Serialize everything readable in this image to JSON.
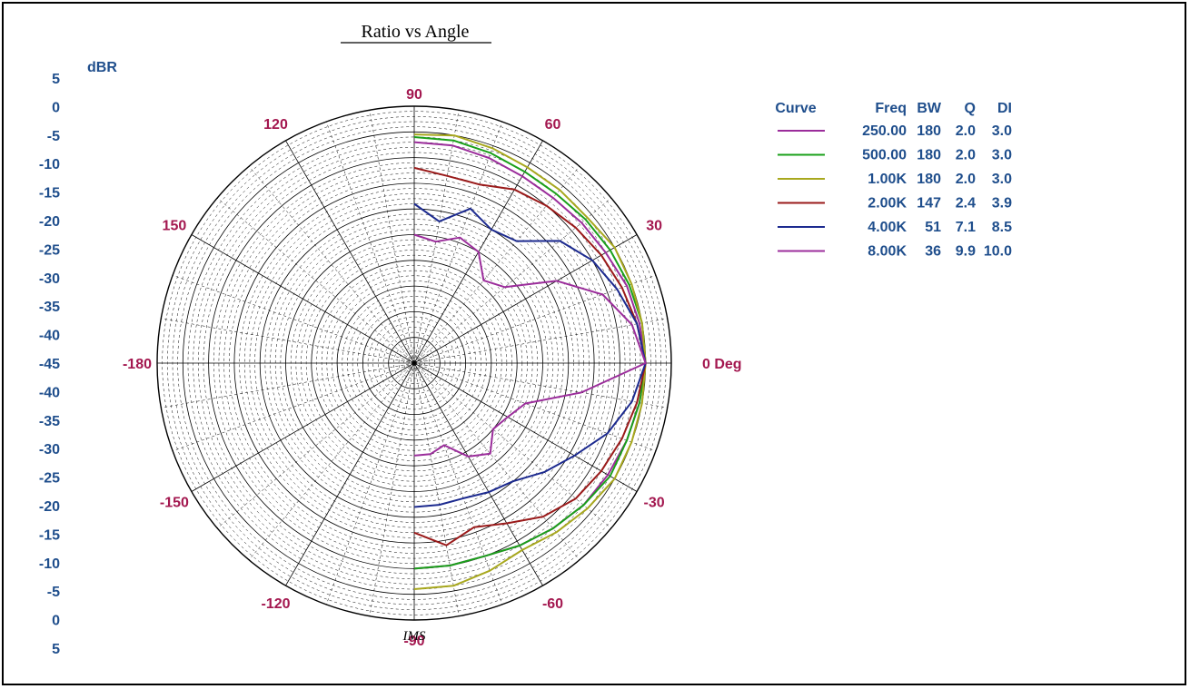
{
  "chart_data": {
    "type": "polar",
    "title": "Ratio vs Angle",
    "radial_unit": "dBR",
    "radial_range": [
      -45,
      5
    ],
    "radial_ticks_upper": [
      "5",
      "0",
      "-5",
      "-10",
      "-15",
      "-20",
      "-25",
      "-30",
      "-35",
      "-40",
      "-45"
    ],
    "radial_ticks_lower": [
      "-40",
      "-35",
      "-30",
      "-25",
      "-20",
      "-15",
      "-10",
      "-5",
      "0",
      "5"
    ],
    "angle_labels": [
      {
        "deg": 0,
        "text": "0 Deg"
      },
      {
        "deg": 30,
        "text": "30"
      },
      {
        "deg": 60,
        "text": "60"
      },
      {
        "deg": 90,
        "text": "90"
      },
      {
        "deg": 120,
        "text": "120"
      },
      {
        "deg": 150,
        "text": "150"
      },
      {
        "deg": 180,
        "text": "-180"
      },
      {
        "deg": -150,
        "text": "-150"
      },
      {
        "deg": -120,
        "text": "-120"
      },
      {
        "deg": -90,
        "text": "-90"
      },
      {
        "deg": -60,
        "text": "-60"
      },
      {
        "deg": -30,
        "text": "-30"
      }
    ],
    "watermark": "IMS",
    "table_headers": [
      "Curve",
      "Freq",
      "BW",
      "Q",
      "DI"
    ],
    "series": [
      {
        "freq": "250.00",
        "bw": "180",
        "q": "2.0",
        "di": "3.0",
        "color": "#9b2d9b",
        "points": [
          [
            90,
            -2
          ],
          [
            80,
            -2
          ],
          [
            70,
            -2.5
          ],
          [
            60,
            -3
          ],
          [
            50,
            -3
          ],
          [
            40,
            -2.5
          ],
          [
            30,
            -2
          ],
          [
            20,
            -1
          ],
          [
            10,
            -0.5
          ],
          [
            0,
            0
          ],
          [
            -10,
            -0.5
          ],
          [
            -20,
            -1
          ],
          [
            -30,
            -1.5
          ],
          [
            -40,
            -2
          ],
          [
            -50,
            -3
          ],
          [
            -60,
            -4
          ],
          [
            -70,
            -5
          ],
          [
            -80,
            -5
          ],
          [
            -90,
            -5
          ]
        ]
      },
      {
        "freq": "500.00",
        "bw": "180",
        "q": "2.0",
        "di": "3.0",
        "color": "#1aa01a",
        "points": [
          [
            90,
            -1
          ],
          [
            80,
            -1
          ],
          [
            70,
            -1.5
          ],
          [
            60,
            -2
          ],
          [
            50,
            -2
          ],
          [
            40,
            -1.5
          ],
          [
            30,
            -1
          ],
          [
            20,
            -0.5
          ],
          [
            10,
            0
          ],
          [
            0,
            0
          ],
          [
            -10,
            -0.5
          ],
          [
            -20,
            -1
          ],
          [
            -30,
            -1
          ],
          [
            -40,
            -2
          ],
          [
            -50,
            -3
          ],
          [
            -60,
            -4
          ],
          [
            -70,
            -5
          ],
          [
            -80,
            -5
          ],
          [
            -90,
            -5
          ]
        ]
      },
      {
        "freq": "1.00K",
        "bw": "180",
        "q": "2.0",
        "di": "3.0",
        "color": "#a8a81e",
        "points": [
          [
            90,
            -0.5
          ],
          [
            80,
            0
          ],
          [
            70,
            -0.5
          ],
          [
            60,
            -1
          ],
          [
            50,
            -1
          ],
          [
            40,
            -1
          ],
          [
            30,
            0
          ],
          [
            20,
            0
          ],
          [
            10,
            0
          ],
          [
            0,
            0
          ],
          [
            -10,
            0
          ],
          [
            -20,
            0
          ],
          [
            -30,
            0
          ],
          [
            -40,
            -1
          ],
          [
            -50,
            -2
          ],
          [
            -60,
            -3
          ],
          [
            -70,
            -2
          ],
          [
            -80,
            -1
          ],
          [
            -90,
            -1
          ]
        ]
      },
      {
        "freq": "2.00K",
        "bw": "147",
        "q": "2.4",
        "di": "3.9",
        "color": "#9a1a1a",
        "points": [
          [
            90,
            -7
          ],
          [
            80,
            -8
          ],
          [
            70,
            -8
          ],
          [
            60,
            -6
          ],
          [
            50,
            -5
          ],
          [
            40,
            -4
          ],
          [
            30,
            -3
          ],
          [
            20,
            -2
          ],
          [
            10,
            -1
          ],
          [
            0,
            0
          ],
          [
            -10,
            -1
          ],
          [
            -20,
            -2
          ],
          [
            -30,
            -3
          ],
          [
            -40,
            -4
          ],
          [
            -50,
            -6
          ],
          [
            -60,
            -9
          ],
          [
            -70,
            -11
          ],
          [
            -80,
            -9
          ],
          [
            -90,
            -12
          ]
        ]
      },
      {
        "freq": "4.00K",
        "bw": "51",
        "q": "7.1",
        "di": "8.5",
        "color": "#1c2a8f",
        "points": [
          [
            90,
            -14
          ],
          [
            80,
            -17
          ],
          [
            70,
            -13
          ],
          [
            60,
            -15
          ],
          [
            50,
            -14
          ],
          [
            40,
            -8
          ],
          [
            30,
            -5
          ],
          [
            20,
            -3
          ],
          [
            10,
            -1
          ],
          [
            0,
            0
          ],
          [
            -10,
            -2
          ],
          [
            -20,
            -5
          ],
          [
            -30,
            -9
          ],
          [
            -40,
            -12
          ],
          [
            -50,
            -15
          ],
          [
            -60,
            -16
          ],
          [
            -70,
            -17
          ],
          [
            -80,
            -17
          ],
          [
            -90,
            -17
          ]
        ]
      },
      {
        "freq": "8.00K",
        "bw": "36",
        "q": "9.9",
        "di": "10.0",
        "color": "#9b2d9b",
        "points": [
          [
            90,
            -20
          ],
          [
            80,
            -21
          ],
          [
            70,
            -19
          ],
          [
            60,
            -20
          ],
          [
            50,
            -24
          ],
          [
            40,
            -22
          ],
          [
            30,
            -13
          ],
          [
            20,
            -6
          ],
          [
            10,
            -2
          ],
          [
            0,
            0
          ],
          [
            -10,
            -12
          ],
          [
            -20,
            -22
          ],
          [
            -30,
            -24
          ],
          [
            -40,
            -25
          ],
          [
            -50,
            -22
          ],
          [
            -60,
            -24
          ],
          [
            -70,
            -28
          ],
          [
            -80,
            -27
          ],
          [
            -90,
            -27
          ]
        ]
      }
    ]
  }
}
